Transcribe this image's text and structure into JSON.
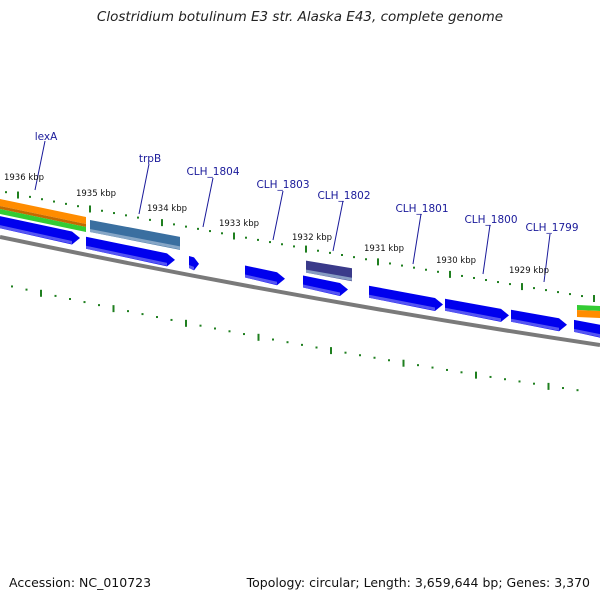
{
  "title": "Clostridium botulinum E3 str. Alaska E43, complete genome",
  "footer": {
    "accession": "Accession: NC_010723",
    "stats": "Topology: circular; Length: 3,659,644 bp; Genes: 3,370"
  },
  "gene_labels": [
    "lexA",
    "trpB",
    "CLH_1804",
    "CLH_1803",
    "CLH_1802",
    "CLH_1801",
    "CLH_1800",
    "CLH_1799"
  ],
  "kbp_labels": [
    "1936 kbp",
    "1935 kbp",
    "1934 kbp",
    "1933 kbp",
    "1932 kbp",
    "1931 kbp",
    "1930 kbp",
    "1929 kbp"
  ],
  "colors": {
    "gene_blue": "#0000ee",
    "gene_highlight": "#6a6af2",
    "trpB_gene": "#3a6fa0",
    "clh1802_gene": "#3a3a8a",
    "orange_band": "#ff8c00",
    "green_band": "#33cc33",
    "backbone": "#7a7a7a",
    "tick_green": "#1f7f1f",
    "label_blue": "#1a1a9a"
  }
}
